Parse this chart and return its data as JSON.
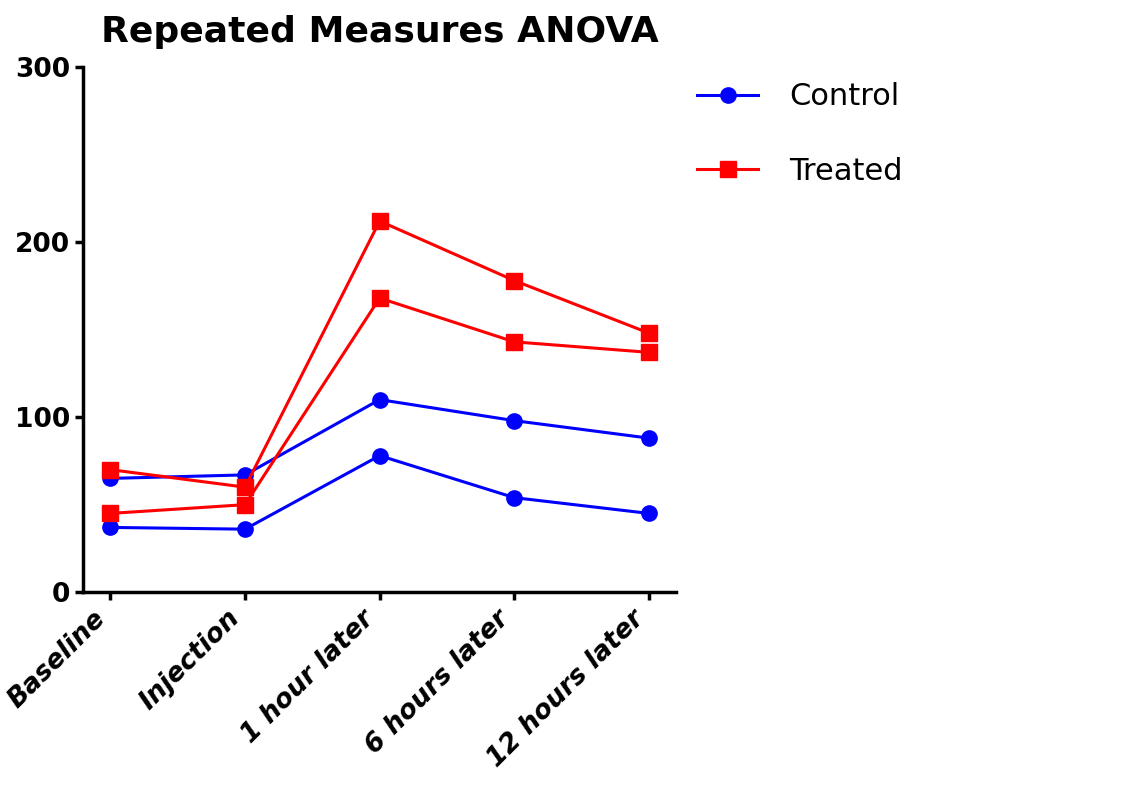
{
  "title": "Repeated Measures ANOVA",
  "title_fontsize": 26,
  "title_fontweight": "bold",
  "x_labels": [
    "Baseline",
    "Injection",
    "1 hour later",
    "6 hours later",
    "12 hours later"
  ],
  "ylim": [
    0,
    300
  ],
  "yticks": [
    0,
    100,
    200,
    300
  ],
  "control_line1": [
    65,
    67,
    110,
    98,
    88
  ],
  "control_line2": [
    37,
    36,
    78,
    54,
    45
  ],
  "treated_line1": [
    70,
    60,
    212,
    178,
    148
  ],
  "treated_line2": [
    45,
    50,
    168,
    143,
    137
  ],
  "control_color": "#0000ff",
  "treated_color": "#ff0000",
  "linewidth": 2.2,
  "markersize": 11,
  "control_marker": "o",
  "treated_marker": "s",
  "legend_control": "Control",
  "legend_treated": "Treated",
  "legend_fontsize": 22,
  "tick_labelsize": 19,
  "xlabel_rotation": 45,
  "background_color": "#ffffff",
  "spine_linewidth": 2.5
}
